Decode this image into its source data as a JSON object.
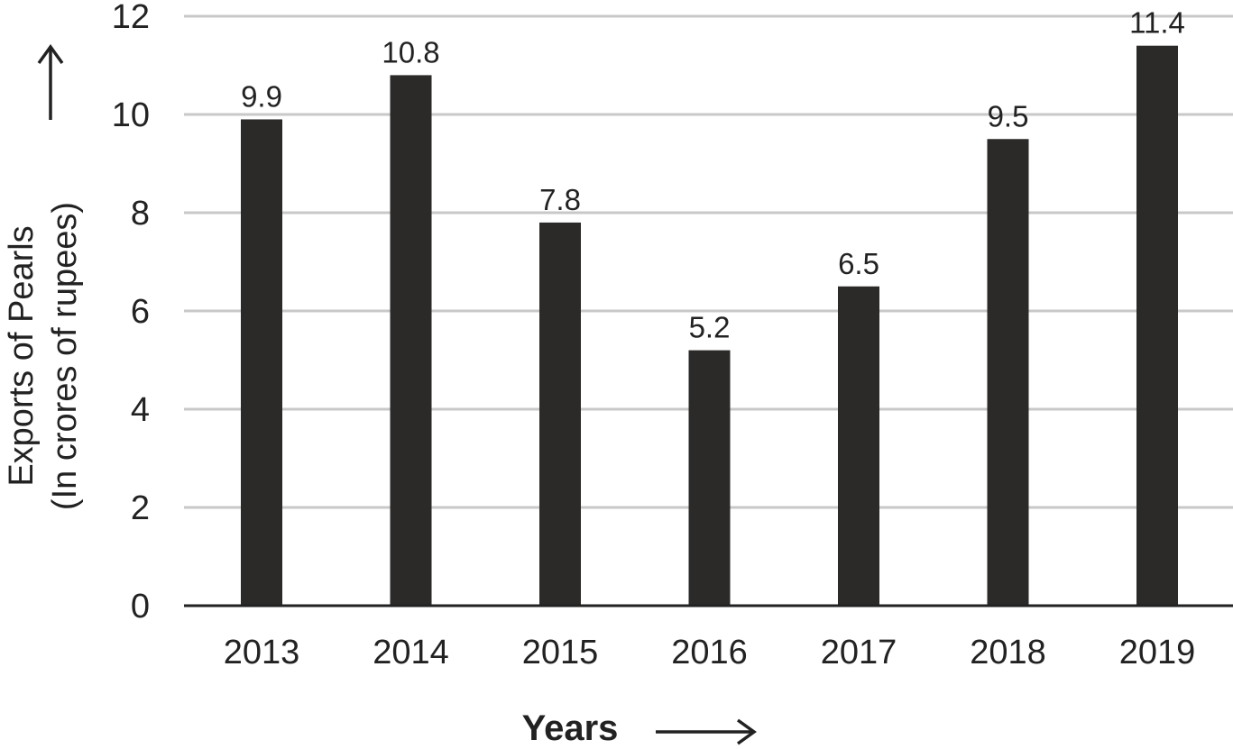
{
  "chart_data": {
    "type": "bar",
    "categories": [
      "2013",
      "2014",
      "2015",
      "2016",
      "2017",
      "2018",
      "2019"
    ],
    "values": [
      9.9,
      10.8,
      7.8,
      5.2,
      6.5,
      9.5,
      11.4
    ],
    "data_labels": [
      "9.9",
      "10.8",
      "7.8",
      "5.2",
      "6.5",
      "9.5",
      "11.4"
    ],
    "title": "",
    "xlabel": "Years",
    "ylabel_lines": [
      "Exports of Pearls",
      "(In crores of rupees)"
    ],
    "ylim": [
      0,
      12
    ],
    "yticks": [
      0,
      2,
      4,
      6,
      8,
      10,
      12
    ],
    "grid": true,
    "legend": "none",
    "colors": {
      "bar": "#2b2a29",
      "grid": "#c8c8c8",
      "axis": "#222222",
      "text": "#222222"
    }
  }
}
